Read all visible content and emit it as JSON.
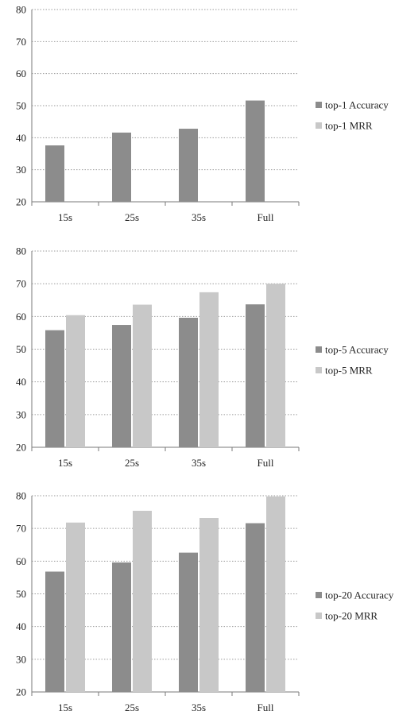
{
  "colors": {
    "accuracy": "#8c8c8c",
    "mrr": "#c8c8c8"
  },
  "chart_data": [
    {
      "type": "bar",
      "categories": [
        "15s",
        "25s",
        "35s",
        "Full"
      ],
      "ylim": [
        20,
        80
      ],
      "yticks": [
        "20",
        "30",
        "40",
        "50",
        "60",
        "70",
        "80"
      ],
      "grid": true,
      "legend_position": "right",
      "series": [
        {
          "name": "top-1 Accuracy",
          "values": [
            37.6,
            41.6,
            42.8,
            51.6
          ]
        },
        {
          "name": "top-1 MRR",
          "values": [
            null,
            null,
            null,
            null
          ]
        }
      ]
    },
    {
      "type": "bar",
      "categories": [
        "15s",
        "25s",
        "35s",
        "Full"
      ],
      "ylim": [
        20,
        80
      ],
      "yticks": [
        "20",
        "30",
        "40",
        "50",
        "60",
        "70",
        "80"
      ],
      "grid": true,
      "legend_position": "right",
      "series": [
        {
          "name": "top-5 Accuracy",
          "values": [
            55.8,
            57.4,
            59.6,
            63.7
          ]
        },
        {
          "name": "top-5 MRR",
          "values": [
            60.4,
            63.6,
            67.4,
            70.0
          ]
        }
      ]
    },
    {
      "type": "bar",
      "categories": [
        "15s",
        "25s",
        "35s",
        "Full"
      ],
      "ylim": [
        20,
        80
      ],
      "yticks": [
        "20",
        "30",
        "40",
        "50",
        "60",
        "70",
        "80"
      ],
      "grid": true,
      "legend_position": "right",
      "series": [
        {
          "name": "top-20 Accuracy",
          "values": [
            56.8,
            59.6,
            62.6,
            71.6
          ]
        },
        {
          "name": "top-20 MRR",
          "values": [
            71.8,
            75.4,
            73.2,
            79.8
          ]
        }
      ]
    }
  ]
}
